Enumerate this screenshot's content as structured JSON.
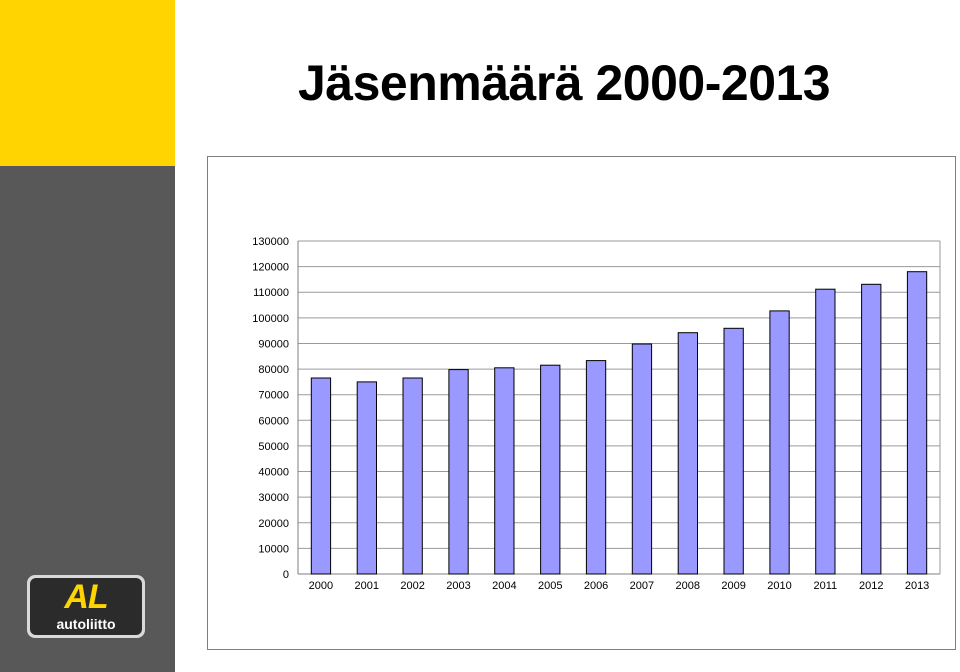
{
  "page": {
    "title": "Jäsenmäärä 2000-2013"
  },
  "logo": {
    "mark": "AL",
    "word": "autoliitto"
  },
  "colors": {
    "accent_yellow": "#ffd400",
    "side_gray": "#585858",
    "bar_fill": "#9999ff",
    "bar_stroke": "#000000"
  },
  "chart_data": {
    "type": "bar",
    "title": "",
    "xlabel": "",
    "ylabel": "",
    "categories": [
      "2000",
      "2001",
      "2002",
      "2003",
      "2004",
      "2005",
      "2006",
      "2007",
      "2008",
      "2009",
      "2010",
      "2011",
      "2012",
      "2013"
    ],
    "values": [
      76500,
      75000,
      76500,
      79800,
      80500,
      81500,
      83300,
      89800,
      94200,
      95900,
      102700,
      111200,
      113100,
      118000
    ],
    "ylim": [
      0,
      130000
    ],
    "yticks": [
      "0",
      "10000",
      "20000",
      "30000",
      "40000",
      "50000",
      "60000",
      "70000",
      "80000",
      "90000",
      "100000",
      "110000",
      "120000",
      "130000"
    ],
    "grid": true,
    "legend": "none"
  }
}
